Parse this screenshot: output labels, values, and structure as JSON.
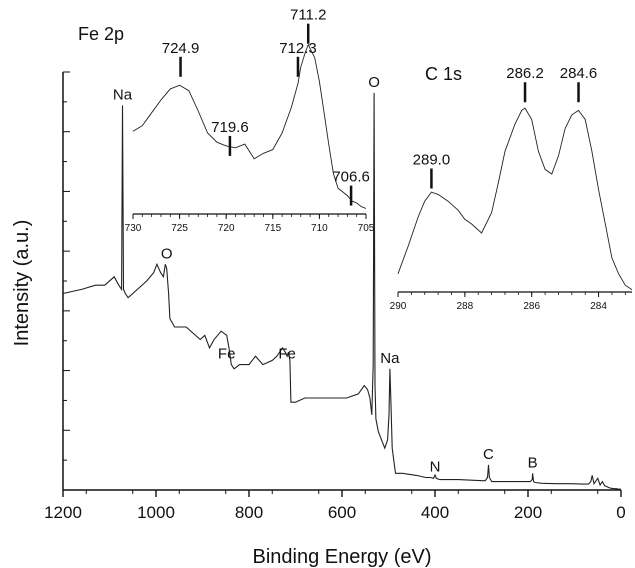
{
  "chart_data": [
    {
      "id": "main",
      "type": "line",
      "xlabel": "Binding Energy (eV)",
      "ylabel": "Intensity (a.u.)",
      "xlim": [
        1200,
        0
      ],
      "reversed_x": true,
      "xticks": [
        1200,
        1000,
        800,
        600,
        400,
        200,
        0
      ],
      "ylim": [
        0,
        100
      ],
      "y_tick_labels_shown": false,
      "annotations": [
        {
          "text": "Na",
          "x": 1072,
          "y": 92
        },
        {
          "text": "O",
          "x": 977,
          "y": 54
        },
        {
          "text": "Fe",
          "x": 848,
          "y": 30
        },
        {
          "text": "Fe",
          "x": 718,
          "y": 30
        },
        {
          "text": "O",
          "x": 531,
          "y": 95
        },
        {
          "text": "Na",
          "x": 497,
          "y": 29
        },
        {
          "text": "N",
          "x": 400,
          "y": 3
        },
        {
          "text": "C",
          "x": 285,
          "y": 6
        },
        {
          "text": "B",
          "x": 190,
          "y": 4
        }
      ],
      "series": [
        {
          "color": "#222222",
          "x": [
            1200,
            1160,
            1130,
            1110,
            1090,
            1080,
            1074,
            1072,
            1070,
            1066,
            1060,
            1040,
            1020,
            1005,
            998,
            990,
            984,
            980,
            977,
            973,
            970,
            960,
            935,
            905,
            895,
            885,
            875,
            860,
            848,
            843,
            838,
            832,
            820,
            800,
            786,
            778,
            770,
            750,
            740,
            728,
            722,
            718,
            715,
            712,
            710,
            700,
            680,
            650,
            620,
            590,
            565,
            552,
            545,
            540,
            536,
            533,
            531,
            529,
            527,
            522,
            515,
            508,
            502,
            499,
            497,
            495,
            492,
            485,
            470,
            440,
            420,
            410,
            403,
            400,
            397,
            390,
            350,
            310,
            292,
            287,
            285,
            283,
            278,
            270,
            230,
            205,
            195,
            191,
            190,
            188,
            185,
            170,
            140,
            110,
            80,
            70,
            65,
            62,
            58,
            50,
            45,
            40,
            35,
            30,
            25,
            20,
            15,
            10,
            5,
            0
          ],
          "y": [
            47,
            48,
            49,
            49,
            51,
            49,
            48,
            92,
            48,
            47,
            46,
            48,
            50,
            52,
            54,
            52,
            51,
            54,
            53,
            47,
            41,
            39,
            39,
            36,
            37,
            34,
            36,
            38,
            37,
            34,
            30,
            29,
            30,
            30,
            32,
            31,
            30,
            31,
            32,
            34,
            33,
            32,
            33,
            31,
            21,
            21,
            22,
            22,
            22,
            22,
            23,
            25,
            24,
            22,
            18,
            30,
            95,
            25,
            17,
            14,
            12,
            10,
            12,
            18,
            29,
            22,
            10,
            4,
            4,
            3.5,
            3,
            3,
            2.8,
            3.6,
            2.8,
            2.5,
            2.5,
            2.3,
            2.2,
            3,
            6,
            3,
            2,
            2,
            2,
            2,
            2,
            2.5,
            4,
            2,
            1.8,
            1.6,
            1.5,
            1.5,
            1.4,
            1.4,
            2,
            3.5,
            1.5,
            2.8,
            1.2,
            2,
            1,
            0.8,
            0.5,
            0.4,
            0.3,
            0.3,
            0.2,
            0.2
          ]
        }
      ]
    },
    {
      "id": "fe2p",
      "type": "line",
      "title": "Fe 2p",
      "xlim": [
        730,
        705
      ],
      "reversed_x": true,
      "xticks": [
        730,
        725,
        720,
        715,
        710,
        705
      ],
      "ylim": [
        0,
        100
      ],
      "annotations": [
        {
          "text": "724.9",
          "x": 724.9,
          "y": 80
        },
        {
          "text": "719.6",
          "x": 719.6,
          "y": 37
        },
        {
          "text": "712.3",
          "x": 712.3,
          "y": 80
        },
        {
          "text": "711.2",
          "x": 711.2,
          "y": 98
        },
        {
          "text": "706.6",
          "x": 706.6,
          "y": 10
        }
      ],
      "series": [
        {
          "color": "#222222",
          "x": [
            730,
            729,
            728,
            727,
            726,
            725,
            724,
            723,
            722,
            721,
            720,
            719,
            718,
            717,
            716,
            715,
            714,
            713,
            712.3,
            712,
            711.5,
            711.2,
            710.5,
            710,
            709.5,
            709,
            708.5,
            708,
            707.5,
            707,
            706.5,
            706,
            705.5,
            705
          ],
          "y": [
            45,
            48,
            55,
            62,
            68,
            70,
            67,
            56,
            44,
            39,
            37,
            36,
            38,
            30,
            33,
            35,
            44,
            58,
            71,
            80,
            88,
            92,
            85,
            72,
            55,
            38,
            22,
            14,
            12,
            10,
            7,
            6,
            4,
            3
          ]
        }
      ]
    },
    {
      "id": "c1s",
      "type": "line",
      "title": "C 1s",
      "xlim": [
        290,
        283
      ],
      "reversed_x": true,
      "xticks": [
        290,
        288,
        286,
        284
      ],
      "ylim": [
        0,
        100
      ],
      "annotations": [
        {
          "text": "289.0",
          "x": 289.0,
          "y": 50
        },
        {
          "text": "286.2",
          "x": 286.2,
          "y": 88
        },
        {
          "text": "284.6",
          "x": 284.6,
          "y": 88
        }
      ],
      "series": [
        {
          "color": "#222222",
          "x": [
            290,
            289.7,
            289.4,
            289.2,
            289.0,
            288.8,
            288.5,
            288.2,
            288.0,
            287.8,
            287.5,
            287.2,
            287.0,
            286.8,
            286.5,
            286.3,
            286.2,
            286.0,
            285.8,
            285.6,
            285.4,
            285.2,
            285.0,
            284.8,
            284.6,
            284.4,
            284.2,
            284.0,
            283.8,
            283.6,
            283.4,
            283.2,
            283.0
          ],
          "y": [
            8,
            20,
            33,
            40,
            44,
            43,
            40,
            36,
            32,
            30,
            26,
            35,
            48,
            62,
            74,
            80,
            81,
            76,
            62,
            54,
            52,
            60,
            72,
            78,
            80,
            76,
            62,
            45,
            30,
            15,
            8,
            3,
            1
          ]
        }
      ]
    }
  ]
}
